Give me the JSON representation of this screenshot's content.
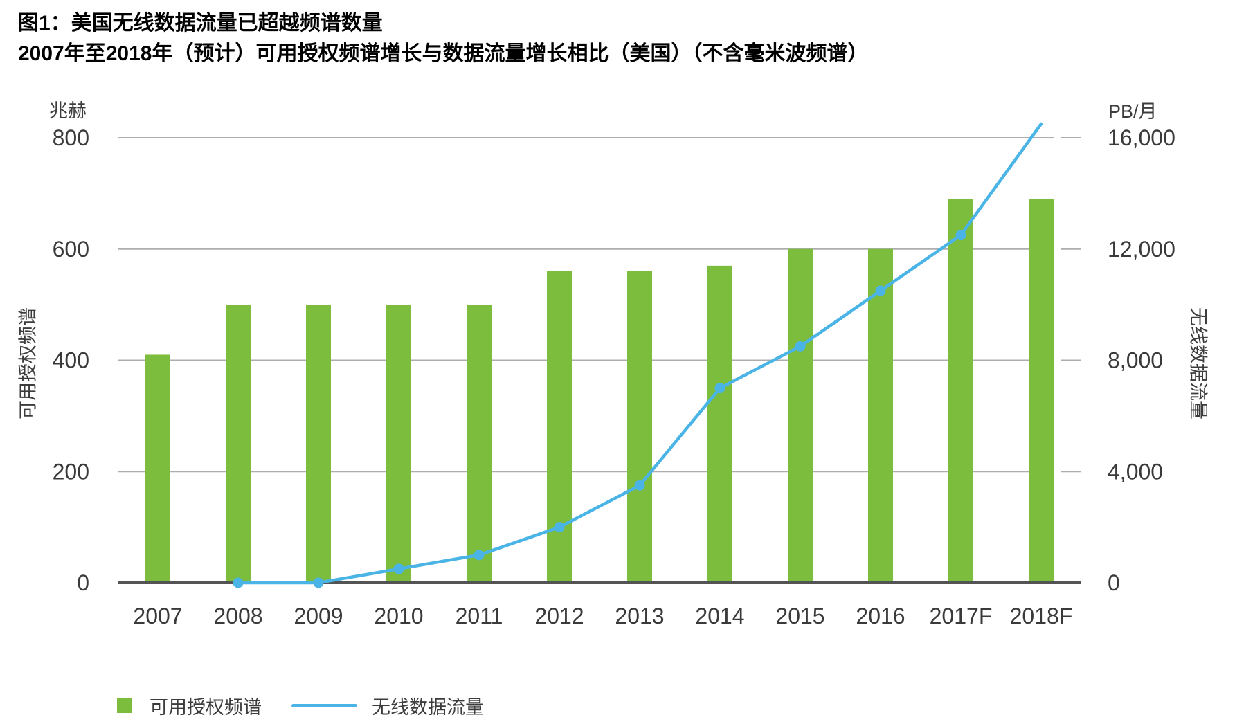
{
  "title": "图1：美国无线数据流量已超越频谱数量",
  "subtitle": "2007年至2018年（预计）可用授权频谱增长与数据流量增长相比（美国）（不含毫米波频谱）",
  "chart_data": {
    "type": "bar+line",
    "categories": [
      "2007",
      "2008",
      "2009",
      "2010",
      "2011",
      "2012",
      "2013",
      "2014",
      "2015",
      "2016",
      "2017F",
      "2018F"
    ],
    "series": [
      {
        "name": "可用授权频谱",
        "type": "bar",
        "axis": "left",
        "color": "#7cbd3e",
        "values": [
          410,
          500,
          500,
          500,
          500,
          560,
          560,
          570,
          600,
          600,
          690,
          690
        ]
      },
      {
        "name": "无线数据流量",
        "type": "line",
        "axis": "right",
        "color": "#4ab4e6",
        "values": [
          null,
          0,
          0,
          500,
          1000,
          2000,
          3500,
          7000,
          8500,
          10500,
          12500,
          16500
        ]
      }
    ],
    "left_axis": {
      "unit": "兆赫",
      "label": "可用授权频谱",
      "ticks": [
        0,
        200,
        400,
        600,
        800
      ],
      "tick_labels": [
        "0",
        "200",
        "400",
        "600",
        "800"
      ],
      "range": [
        0,
        800
      ]
    },
    "right_axis": {
      "unit": "PB/月",
      "label": "无线数据流量",
      "ticks": [
        0,
        4000,
        8000,
        12000,
        16000
      ],
      "tick_labels": [
        "0",
        "4,000",
        "8,000",
        "12,000",
        "16,000"
      ],
      "range": [
        0,
        16000
      ]
    },
    "grid": true,
    "legend_position": "bottom-left",
    "marker_on_last_point": false
  },
  "legend": {
    "items": [
      {
        "label": "可用授权频谱",
        "swatch": "square",
        "color": "#7cbd3e"
      },
      {
        "label": "无线数据流量",
        "swatch": "line",
        "color": "#4ab4e6"
      }
    ]
  },
  "colors": {
    "bar_green": "#7cbd3e",
    "line_blue": "#4ab4e6",
    "gridline": "#adadad",
    "axis_line": "#545454",
    "text": "#3a3a3a",
    "title": "#000000"
  }
}
